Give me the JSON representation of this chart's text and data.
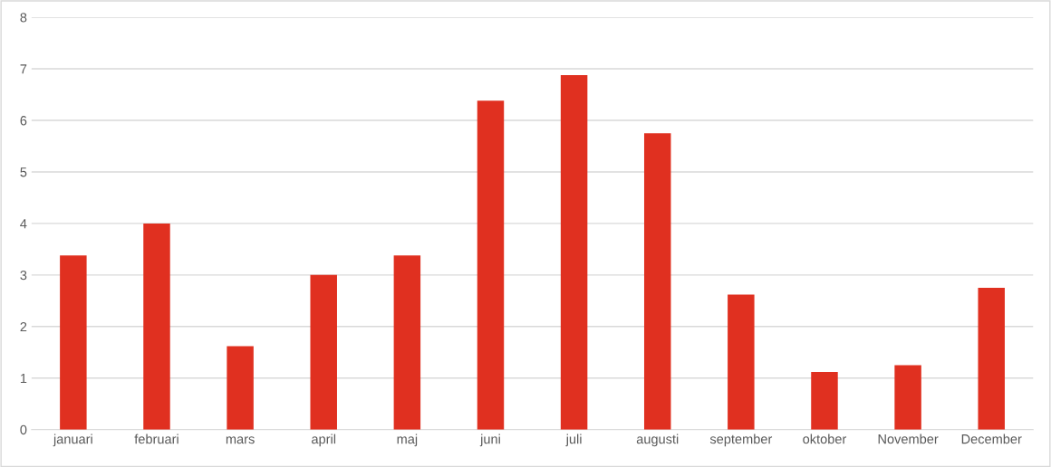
{
  "chart_data": {
    "type": "bar",
    "categories": [
      "januari",
      "februari",
      "mars",
      "april",
      "maj",
      "juni",
      "juli",
      "augusti",
      "september",
      "oktober",
      "November",
      "December"
    ],
    "values": [
      3.38,
      4.0,
      1.62,
      3.0,
      3.38,
      6.38,
      6.88,
      5.75,
      2.62,
      1.12,
      1.25,
      2.75
    ],
    "color": "#e03020",
    "ylim": [
      0,
      8
    ],
    "yticks": [
      0,
      1,
      2,
      3,
      4,
      5,
      6,
      7,
      8
    ],
    "grid": "y",
    "legend": false
  }
}
